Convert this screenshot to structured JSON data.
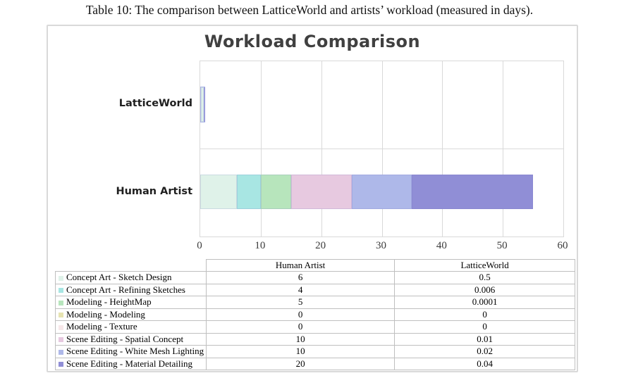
{
  "caption": "Table 10: The comparison between LatticeWorld and artists’ workload (measured in days).",
  "chart_data": {
    "type": "bar",
    "orientation": "horizontal",
    "stacked": true,
    "title": "Workload Comparison",
    "categories": [
      "LatticeWorld",
      "Human Artist"
    ],
    "xlabel": "",
    "ylabel": "",
    "xlim": [
      0,
      60
    ],
    "x_ticks": [
      0,
      10,
      20,
      30,
      40,
      50,
      60
    ],
    "grid": "vertical",
    "legend_position": "data-table-below",
    "series": [
      {
        "name": "Concept Art - Sketch Design",
        "color": "#dff2e9",
        "values": {
          "Human Artist": 6,
          "LatticeWorld": 0.5
        }
      },
      {
        "name": "Concept Art - Refining Sketches",
        "color": "#a8e6e3",
        "values": {
          "Human Artist": 4,
          "LatticeWorld": 0.006
        }
      },
      {
        "name": "Modeling - HeightMap",
        "color": "#b7e5bc",
        "values": {
          "Human Artist": 5,
          "LatticeWorld": 0.0001
        }
      },
      {
        "name": "Modeling - Modeling",
        "color": "#e6e3b1",
        "values": {
          "Human Artist": 0,
          "LatticeWorld": 0
        }
      },
      {
        "name": "Modeling - Texture",
        "color": "#f7e8ea",
        "values": {
          "Human Artist": 0,
          "LatticeWorld": 0
        }
      },
      {
        "name": "Scene Editing - Spatial Concept",
        "color": "#e7c9e0",
        "values": {
          "Human Artist": 10,
          "LatticeWorld": 0.01
        }
      },
      {
        "name": "Scene Editing - White Mesh Lighting",
        "color": "#aeb8e9",
        "values": {
          "Human Artist": 10,
          "LatticeWorld": 0.02
        }
      },
      {
        "name": "Scene Editing - Material Detailing",
        "color": "#908ed6",
        "values": {
          "Human Artist": 20,
          "LatticeWorld": 0.04
        }
      }
    ]
  },
  "table": {
    "columns": [
      "",
      "Human Artist",
      "LatticeWorld"
    ]
  }
}
